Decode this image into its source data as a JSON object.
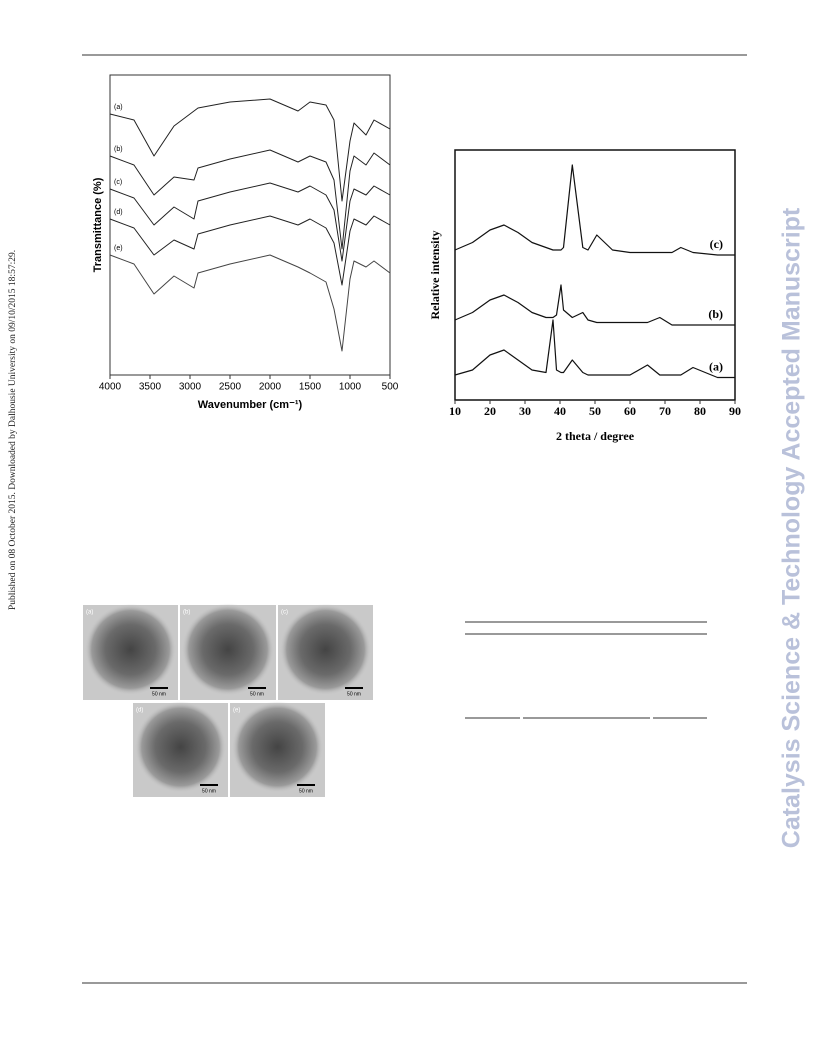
{
  "side_note": "Published on 08 October 2015. Downloaded by Dalhousie University on 09/10/2015 18:57:29.",
  "watermark": "Catalysis Science & Technology Accepted Manuscript",
  "chart_data": [
    {
      "type": "line",
      "xlabel": "Wavenumber (cm⁻¹)",
      "ylabel": "Transmittance (%)",
      "x": [
        4000,
        3700,
        3450,
        3200,
        2950,
        2900,
        2500,
        2000,
        1650,
        1500,
        1300,
        1200,
        1100,
        1000,
        950,
        800,
        700,
        500
      ],
      "xlim": [
        4000,
        500
      ],
      "xticks": [
        4000,
        3500,
        3000,
        2500,
        2000,
        1500,
        1000,
        500
      ],
      "ylim": [
        0,
        100
      ],
      "series": [
        {
          "name": "(a)",
          "color": "#222222",
          "values": [
            87,
            85,
            73,
            83,
            88,
            89,
            91,
            92,
            88,
            91,
            90,
            85,
            58,
            78,
            84,
            80,
            85,
            82
          ]
        },
        {
          "name": "(b)",
          "color": "#222222",
          "values": [
            73,
            70,
            60,
            66,
            65,
            69,
            72,
            75,
            71,
            73,
            71,
            65,
            42,
            68,
            73,
            70,
            74,
            70
          ]
        },
        {
          "name": "(c)",
          "color": "#222222",
          "values": [
            62,
            59,
            50,
            56,
            52,
            58,
            61,
            64,
            61,
            63,
            60,
            55,
            38,
            58,
            62,
            60,
            63,
            60
          ]
        },
        {
          "name": "(d)",
          "color": "#222222",
          "values": [
            52,
            49,
            40,
            45,
            42,
            47,
            50,
            53,
            50,
            52,
            49,
            44,
            30,
            48,
            52,
            50,
            53,
            50
          ]
        },
        {
          "name": "(e)",
          "color": "#444444",
          "values": [
            40,
            37,
            27,
            33,
            29,
            34,
            37,
            40,
            36,
            34,
            31,
            22,
            8,
            32,
            38,
            36,
            38,
            34
          ]
        }
      ]
    },
    {
      "type": "line",
      "xlabel": "2 theta / degree",
      "ylabel": "Relative intensity",
      "x": [
        10,
        15,
        20,
        24,
        28,
        32,
        36,
        38,
        39,
        40.3,
        41,
        43.5,
        46.5,
        48,
        50.5,
        55,
        60,
        65,
        68.5,
        72,
        74.5,
        78,
        85,
        90
      ],
      "xlim": [
        10,
        90
      ],
      "xticks": [
        10,
        20,
        30,
        40,
        50,
        60,
        70,
        80,
        90
      ],
      "ylim": [
        0,
        100
      ],
      "series": [
        {
          "name": "(a)",
          "color": "#111111",
          "values": [
            10,
            12,
            18,
            20,
            16,
            12,
            11,
            32,
            12,
            11,
            11,
            16,
            11,
            10,
            10,
            10,
            10,
            14,
            10,
            10,
            10,
            13,
            9,
            9
          ]
        },
        {
          "name": "(b)",
          "color": "#111111",
          "values": [
            32,
            35,
            40,
            42,
            39,
            35,
            33,
            33,
            34,
            46,
            36,
            33,
            35,
            32,
            31,
            31,
            31,
            31,
            33,
            30,
            30,
            30,
            30,
            30
          ]
        },
        {
          "name": "(c)",
          "color": "#111111",
          "values": [
            60,
            63,
            68,
            70,
            67,
            63,
            61,
            60,
            60,
            60,
            61,
            94,
            61,
            60,
            66,
            60,
            59,
            59,
            59,
            59,
            61,
            59,
            58,
            58
          ]
        }
      ]
    }
  ],
  "tem": {
    "panels": [
      {
        "label": "(a)",
        "scale": "50 nm"
      },
      {
        "label": "(b)",
        "scale": "50 nm"
      },
      {
        "label": "(c)",
        "scale": "50 nm"
      },
      {
        "label": "(d)",
        "scale": "50 nm"
      },
      {
        "label": "(e)",
        "scale": "50 nm"
      }
    ]
  }
}
